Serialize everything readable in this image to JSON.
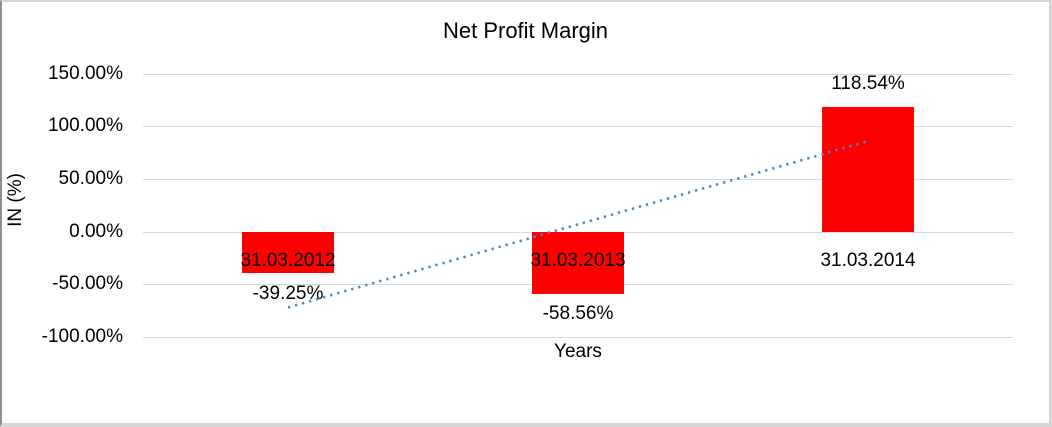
{
  "chart_data": {
    "type": "bar",
    "title": "Net Profit Margin",
    "xlabel": "Years",
    "ylabel": "IN (%)",
    "categories": [
      "31.03.2012",
      "31.03.2013",
      "31.03.2014"
    ],
    "values": [
      -39.25,
      -58.56,
      118.54
    ],
    "data_labels": [
      "-39.25%",
      "-58.56%",
      "118.54%"
    ],
    "y_ticks": [
      "150.00%",
      "100.00%",
      "50.00%",
      "0.00%",
      "-50.00%",
      "-100.00%"
    ],
    "ylim": [
      -100,
      150
    ],
    "grid": "horizontal",
    "legend": "none",
    "colors": {
      "bar": "#ff0000",
      "gridline": "#d9d9d9",
      "trendline": "#4e86c8",
      "text": "#000000"
    },
    "trendline": {
      "type": "linear",
      "style": "dotted",
      "span": "first-to-last-category"
    }
  }
}
